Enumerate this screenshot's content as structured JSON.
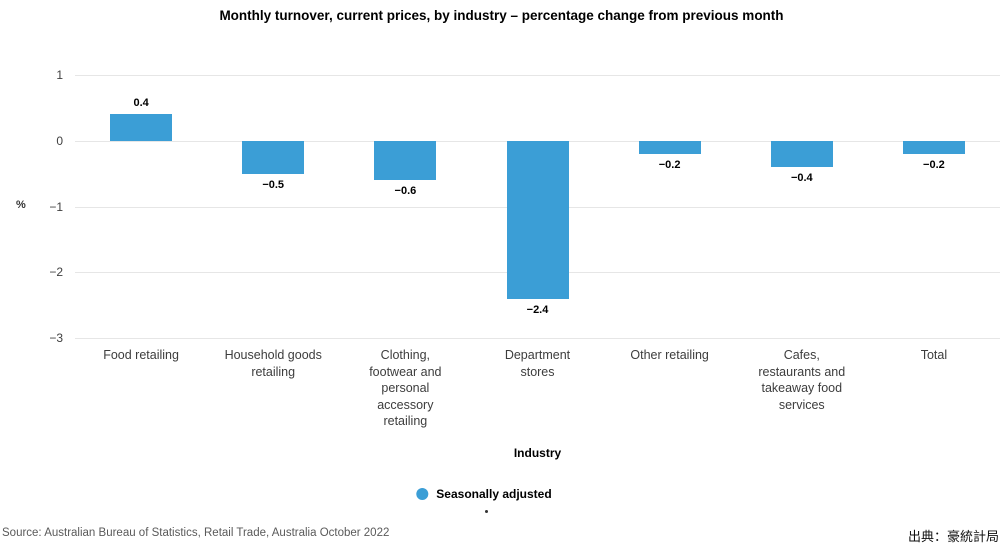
{
  "chart_data": {
    "type": "bar",
    "title": "Monthly turnover, current prices, by industry – percentage change from previous month",
    "categories": [
      "Food retailing",
      "Household goods\nretailing",
      "Clothing,\nfootwear and\npersonal\naccessory\nretailing",
      "Department\nstores",
      "Other retailing",
      "Cafes,\nrestaurants and\ntakeaway food\nservices",
      "Total"
    ],
    "values": [
      0.4,
      -0.5,
      -0.6,
      -2.4,
      -0.2,
      -0.4,
      -0.2
    ],
    "value_labels": [
      "0.4",
      "−0.5",
      "−0.6",
      "−2.4",
      "−0.2",
      "−0.4",
      "−0.2"
    ],
    "xlabel": "Industry",
    "ylabel": "%",
    "ylim": [
      -3,
      1
    ],
    "yticks": [
      1,
      0,
      -1,
      -2,
      -3
    ],
    "grid": true,
    "legend_position": "bottom",
    "bar_color": "#3b9ed6",
    "gridline_color": "#e6e6e6",
    "legend": [
      {
        "label": "Seasonally adjusted",
        "color": "#3b9ed6"
      }
    ]
  },
  "footer": {
    "source": "Source: Australian Bureau of Statistics, Retail Trade, Australia October 2022",
    "attribution": "出典：豪統計局"
  }
}
